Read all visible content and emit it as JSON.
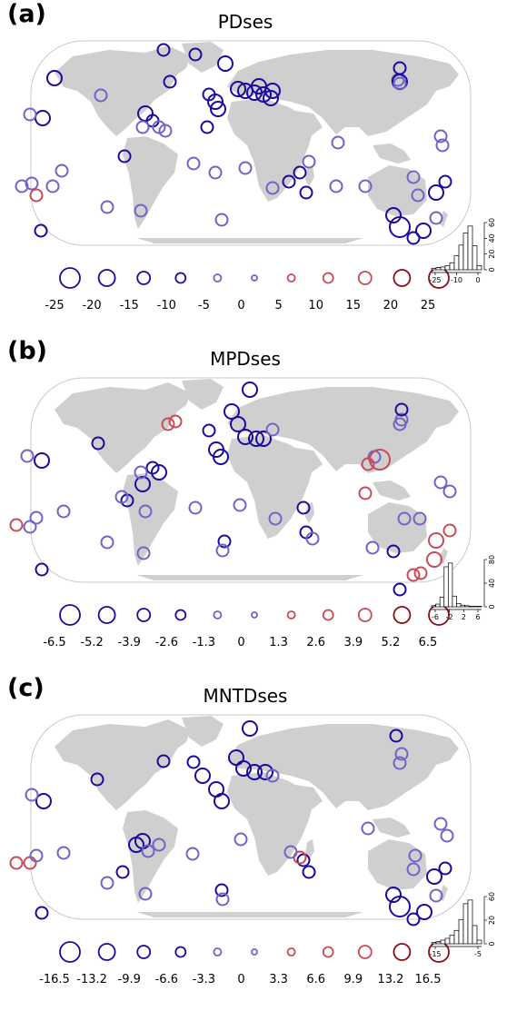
{
  "panels": [
    {
      "label": "(a)",
      "title": "PDses",
      "legend_values": [
        "-25",
        "-20",
        "-15",
        "-10",
        "-5",
        "0",
        "5",
        "10",
        "15",
        "20",
        "25"
      ],
      "hist": {
        "xticks": [
          "-25",
          "-10",
          "0"
        ],
        "yticks": [
          "0",
          "20",
          "40",
          "60"
        ],
        "counts": [
          2,
          3,
          4,
          6,
          10,
          20,
          35,
          52,
          62,
          34,
          6
        ]
      }
    },
    {
      "label": "(b)",
      "title": "MPDses",
      "legend_values": [
        "-6.5",
        "-5.2",
        "-3.9",
        "-2.6",
        "-1.3",
        "0",
        "1.3",
        "2.6",
        "3.9",
        "5.2",
        "6.5"
      ],
      "hist": {
        "xticks": [
          "-6",
          "-2",
          "2",
          "6"
        ],
        "yticks": [
          "0",
          "40",
          "80"
        ],
        "counts": [
          2,
          5,
          18,
          75,
          82,
          20,
          6,
          3,
          2,
          1,
          1,
          1
        ]
      }
    },
    {
      "label": "(c)",
      "title": "MNTDses",
      "legend_values": [
        "-16.5",
        "-13.2",
        "-9.9",
        "-6.6",
        "-3.3",
        "0",
        "3.3",
        "6.6",
        "9.9",
        "13.2",
        "16.5"
      ],
      "hist": {
        "xticks": [
          "-15",
          "-5"
        ],
        "yticks": [
          "0",
          "20",
          "60"
        ],
        "counts": [
          2,
          3,
          6,
          9,
          14,
          22,
          40,
          66,
          72,
          30,
          6
        ]
      }
    }
  ],
  "colors": {
    "neg_strong": "#1a0a9e",
    "neg_weak": "#6f63c9",
    "pos_weak": "#c94a56",
    "pos_strong": "#8e0b12",
    "land": "#cfcfcf"
  }
}
